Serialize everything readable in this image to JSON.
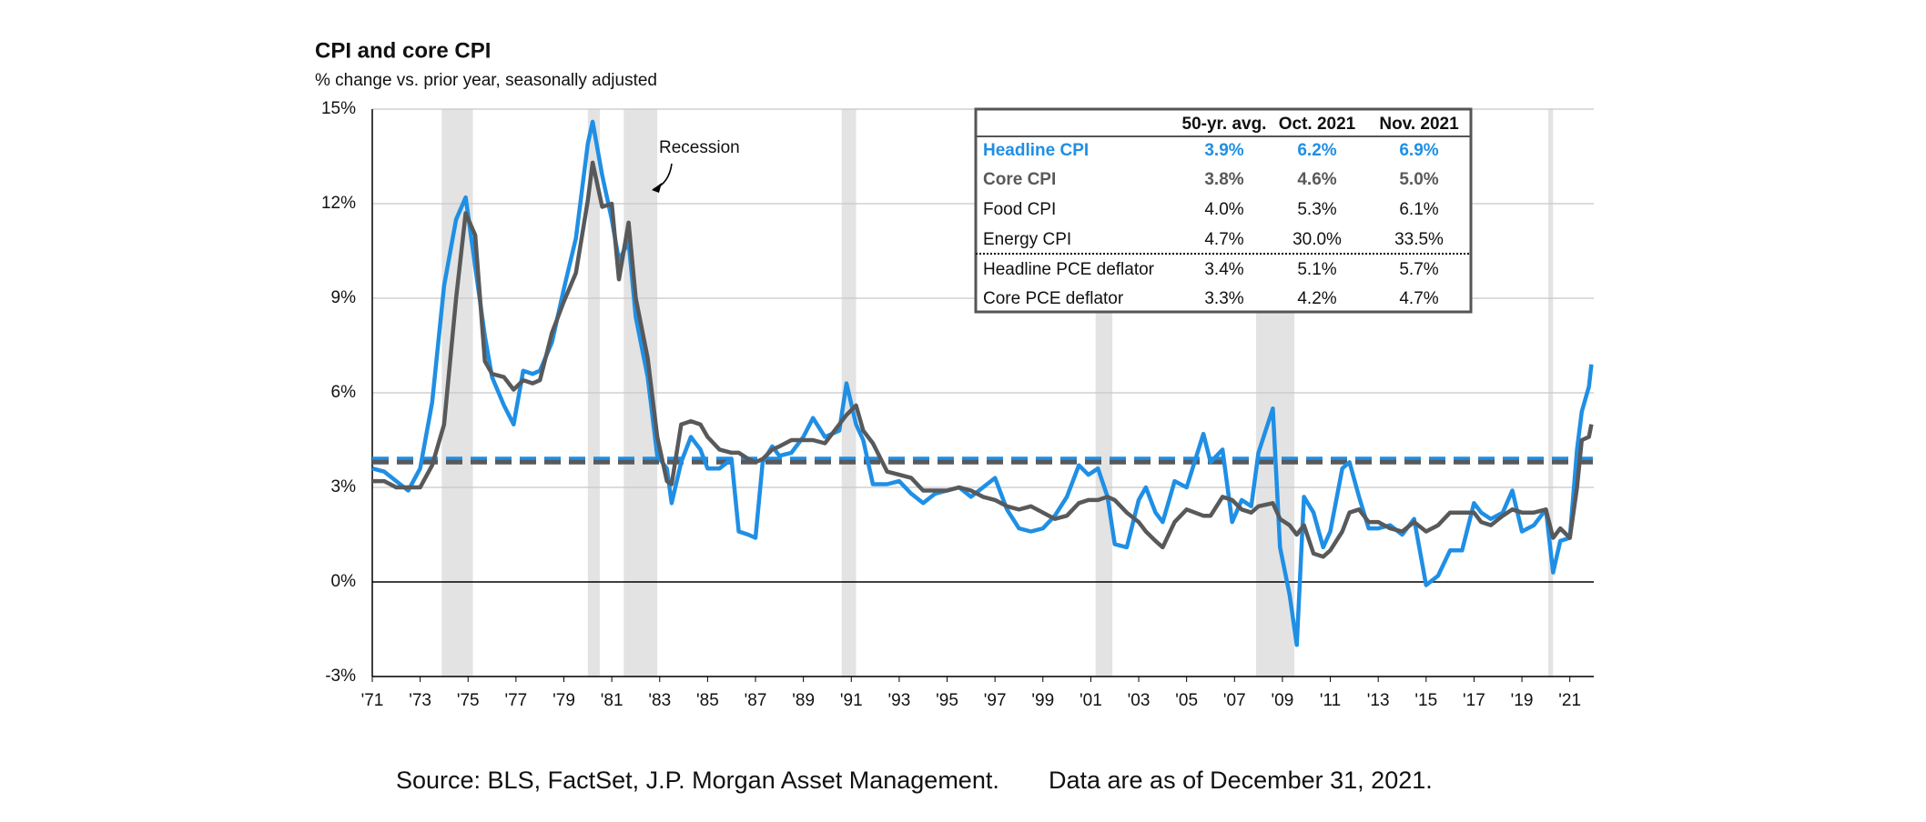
{
  "chart_data": {
    "type": "line",
    "title": "CPI and core CPI",
    "subtitle": "% change vs. prior year, seasonally adjusted",
    "x": [
      1971.0,
      1971.5,
      1972.0,
      1972.5,
      1973.0,
      1973.5,
      1974.0,
      1974.5,
      1974.9,
      1975.3,
      1975.7,
      1976.0,
      1976.5,
      1976.9,
      1977.3,
      1977.7,
      1978.0,
      1978.5,
      1979.0,
      1979.5,
      1980.0,
      1980.2,
      1980.6,
      1981.0,
      1981.3,
      1981.7,
      1982.0,
      1982.5,
      1982.9,
      1983.3,
      1983.5,
      1983.9,
      1984.3,
      1984.7,
      1985.0,
      1985.5,
      1986.0,
      1986.3,
      1986.7,
      1987.0,
      1987.3,
      1987.7,
      1988.0,
      1988.5,
      1989.0,
      1989.4,
      1989.9,
      1990.5,
      1990.8,
      1991.2,
      1991.5,
      1991.9,
      1992.5,
      1993.0,
      1993.5,
      1994.0,
      1994.5,
      1995.0,
      1995.5,
      1996.0,
      1996.5,
      1997.0,
      1997.5,
      1998.0,
      1998.5,
      1999.0,
      1999.5,
      2000.0,
      2000.5,
      2000.9,
      2001.3,
      2001.7,
      2002.0,
      2002.5,
      2003.0,
      2003.3,
      2003.7,
      2004.0,
      2004.5,
      2005.0,
      2005.7,
      2006.0,
      2006.5,
      2006.9,
      2007.3,
      2007.7,
      2008.0,
      2008.6,
      2008.9,
      2009.3,
      2009.6,
      2009.9,
      2010.3,
      2010.7,
      2011.0,
      2011.5,
      2011.8,
      2012.2,
      2012.6,
      2013.0,
      2013.5,
      2014.0,
      2014.5,
      2015.0,
      2015.5,
      2016.0,
      2016.5,
      2017.0,
      2017.3,
      2017.7,
      2018.2,
      2018.6,
      2019.0,
      2019.5,
      2020.0,
      2020.3,
      2020.6,
      2021.0,
      2021.3,
      2021.5,
      2021.8,
      2021.9
    ],
    "series": [
      {
        "name": "Headline CPI",
        "color": "#1f8fe5",
        "average": 3.9,
        "values": [
          3.6,
          3.5,
          3.2,
          2.9,
          3.6,
          5.7,
          9.4,
          11.5,
          12.2,
          10.0,
          7.8,
          6.5,
          5.6,
          5.0,
          6.7,
          6.6,
          6.7,
          7.6,
          9.3,
          10.9,
          13.9,
          14.6,
          12.9,
          11.5,
          10.2,
          10.8,
          8.4,
          6.5,
          4.0,
          3.6,
          2.5,
          3.8,
          4.6,
          4.2,
          3.6,
          3.6,
          3.9,
          1.6,
          1.5,
          1.4,
          3.8,
          4.3,
          4.0,
          4.1,
          4.6,
          5.2,
          4.6,
          4.8,
          6.3,
          5.0,
          4.5,
          3.1,
          3.1,
          3.2,
          2.8,
          2.5,
          2.8,
          2.9,
          3.0,
          2.7,
          3.0,
          3.3,
          2.3,
          1.7,
          1.6,
          1.7,
          2.1,
          2.7,
          3.7,
          3.4,
          3.6,
          2.7,
          1.2,
          1.1,
          2.6,
          3.0,
          2.2,
          1.9,
          3.2,
          3.0,
          4.7,
          3.8,
          4.2,
          1.9,
          2.6,
          2.4,
          4.1,
          5.5,
          1.1,
          -0.4,
          -2.0,
          2.7,
          2.2,
          1.1,
          1.6,
          3.6,
          3.8,
          2.7,
          1.7,
          1.7,
          1.8,
          1.5,
          2.0,
          -0.1,
          0.2,
          1.0,
          1.0,
          2.5,
          2.2,
          2.0,
          2.2,
          2.9,
          1.6,
          1.8,
          2.3,
          0.3,
          1.3,
          1.4,
          4.2,
          5.4,
          6.2,
          6.9
        ]
      },
      {
        "name": "Core CPI",
        "color": "#58595b",
        "average": 3.8,
        "values": [
          3.2,
          3.2,
          3.0,
          3.0,
          3.0,
          3.7,
          5.0,
          9.0,
          11.7,
          11.0,
          7.0,
          6.6,
          6.5,
          6.1,
          6.4,
          6.3,
          6.4,
          7.9,
          8.9,
          9.8,
          12.1,
          13.3,
          11.9,
          12.0,
          9.6,
          11.4,
          9.0,
          7.1,
          4.6,
          3.2,
          3.1,
          5.0,
          5.1,
          5.0,
          4.6,
          4.2,
          4.1,
          4.1,
          3.9,
          3.8,
          3.9,
          4.2,
          4.3,
          4.5,
          4.5,
          4.5,
          4.4,
          5.0,
          5.3,
          5.6,
          4.8,
          4.4,
          3.5,
          3.4,
          3.3,
          2.9,
          2.9,
          2.9,
          3.0,
          2.9,
          2.7,
          2.6,
          2.4,
          2.3,
          2.4,
          2.2,
          2.0,
          2.1,
          2.5,
          2.6,
          2.6,
          2.7,
          2.6,
          2.2,
          1.9,
          1.6,
          1.3,
          1.1,
          1.9,
          2.3,
          2.1,
          2.1,
          2.7,
          2.6,
          2.3,
          2.2,
          2.4,
          2.5,
          2.0,
          1.8,
          1.5,
          1.8,
          0.9,
          0.8,
          1.0,
          1.6,
          2.2,
          2.3,
          1.9,
          1.9,
          1.7,
          1.6,
          1.9,
          1.6,
          1.8,
          2.2,
          2.2,
          2.2,
          1.9,
          1.8,
          2.1,
          2.3,
          2.2,
          2.2,
          2.3,
          1.4,
          1.7,
          1.4,
          3.0,
          4.5,
          4.6,
          5.0
        ]
      }
    ],
    "recessions": [
      [
        1973.9,
        1975.2
      ],
      [
        1980.0,
        1980.5
      ],
      [
        1981.5,
        1982.9
      ],
      [
        1990.6,
        1991.2
      ],
      [
        2001.2,
        2001.9
      ],
      [
        2007.9,
        2009.5
      ],
      [
        2020.1,
        2020.3
      ]
    ],
    "annotation": "Recession",
    "xlim": [
      1971,
      2022
    ],
    "xticks": [
      {
        "value": 1971,
        "label": "'71"
      },
      {
        "value": 1973,
        "label": "'73"
      },
      {
        "value": 1975,
        "label": "'75"
      },
      {
        "value": 1977,
        "label": "'77"
      },
      {
        "value": 1979,
        "label": "'79"
      },
      {
        "value": 1981,
        "label": "'81"
      },
      {
        "value": 1983,
        "label": "'83"
      },
      {
        "value": 1985,
        "label": "'85"
      },
      {
        "value": 1987,
        "label": "'87"
      },
      {
        "value": 1989,
        "label": "'89"
      },
      {
        "value": 1991,
        "label": "'91"
      },
      {
        "value": 1993,
        "label": "'93"
      },
      {
        "value": 1995,
        "label": "'95"
      },
      {
        "value": 1997,
        "label": "'97"
      },
      {
        "value": 1999,
        "label": "'99"
      },
      {
        "value": 2001,
        "label": "'01"
      },
      {
        "value": 2003,
        "label": "'03"
      },
      {
        "value": 2005,
        "label": "'05"
      },
      {
        "value": 2007,
        "label": "'07"
      },
      {
        "value": 2009,
        "label": "'09"
      },
      {
        "value": 2011,
        "label": "'11"
      },
      {
        "value": 2013,
        "label": "'13"
      },
      {
        "value": 2015,
        "label": "'15"
      },
      {
        "value": 2017,
        "label": "'17"
      },
      {
        "value": 2019,
        "label": "'19"
      },
      {
        "value": 2021,
        "label": "'21"
      }
    ],
    "ylim": [
      -3,
      15
    ],
    "yticks": [
      {
        "value": -3,
        "label": "-3%"
      },
      {
        "value": 0,
        "label": "0%"
      },
      {
        "value": 3,
        "label": "3%"
      },
      {
        "value": 6,
        "label": "6%"
      },
      {
        "value": 9,
        "label": "9%"
      },
      {
        "value": 12,
        "label": "12%"
      },
      {
        "value": 15,
        "label": "15%"
      }
    ],
    "grid": true,
    "table": {
      "columns": [
        "50-yr. avg.",
        "Oct. 2021",
        "Nov. 2021"
      ],
      "rows": [
        [
          "Headline CPI",
          "3.9%",
          "6.2%",
          "6.9%"
        ],
        [
          "Core CPI",
          "3.8%",
          "4.6%",
          "5.0%"
        ],
        [
          "Food CPI",
          "4.0%",
          "5.3%",
          "6.1%"
        ],
        [
          "Energy CPI",
          "4.7%",
          "30.0%",
          "33.5%"
        ],
        [
          "Headline PCE deflator",
          "3.4%",
          "5.1%",
          "5.7%"
        ],
        [
          "Core PCE deflator",
          "3.3%",
          "4.2%",
          "4.7%"
        ]
      ]
    },
    "source": "Source: BLS, FactSet, J.P. Morgan Asset Management.",
    "date_note": "Data are as of December 31, 2021."
  }
}
